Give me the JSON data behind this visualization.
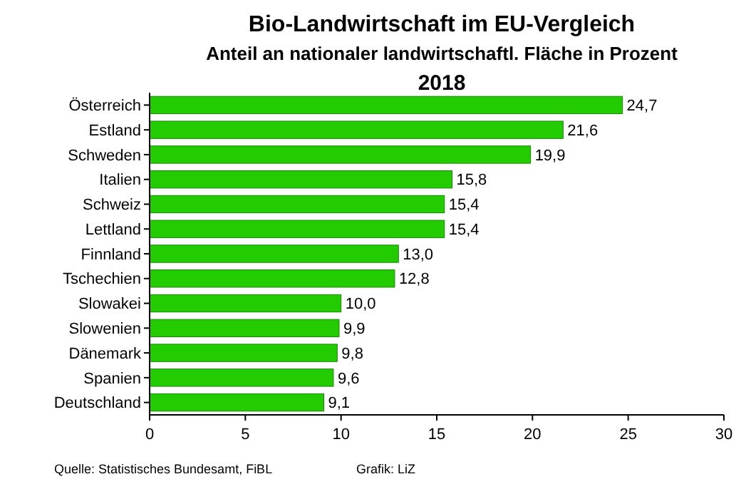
{
  "chart_data": {
    "type": "bar",
    "orientation": "horizontal",
    "title": "Bio-Landwirtschaft im EU-Vergleich",
    "subtitle": "Anteil an nationaler landwirtschaftl. Fläche in Prozent",
    "categories": [
      "Österreich",
      "Estland",
      "Schweden",
      "Italien",
      "Schweiz",
      "Lettland",
      "Finnland",
      "Tschechien",
      "Slowakei",
      "Slowenien",
      "Dänemark",
      "Spanien",
      "Deutschland"
    ],
    "values": [
      24.7,
      21.6,
      19.9,
      15.8,
      15.4,
      15.4,
      13.0,
      12.8,
      10.0,
      9.9,
      9.8,
      9.6,
      9.1
    ],
    "value_labels": [
      "24,7",
      "21,6",
      "19,9",
      "15,8",
      "15,4",
      "15,4",
      "13,0",
      "12,8",
      "10,0",
      "9,9",
      "9,8",
      "9,6",
      "9,1"
    ],
    "color": "#22cc00",
    "xlim": [
      0,
      30
    ],
    "xticks": [
      0,
      5,
      10,
      15,
      20,
      25,
      30
    ],
    "grid": false,
    "annotations": [
      "2018",
      "Quelle: Statistisches Bundesamt, FiBL",
      "Grafik: LiZ"
    ]
  }
}
